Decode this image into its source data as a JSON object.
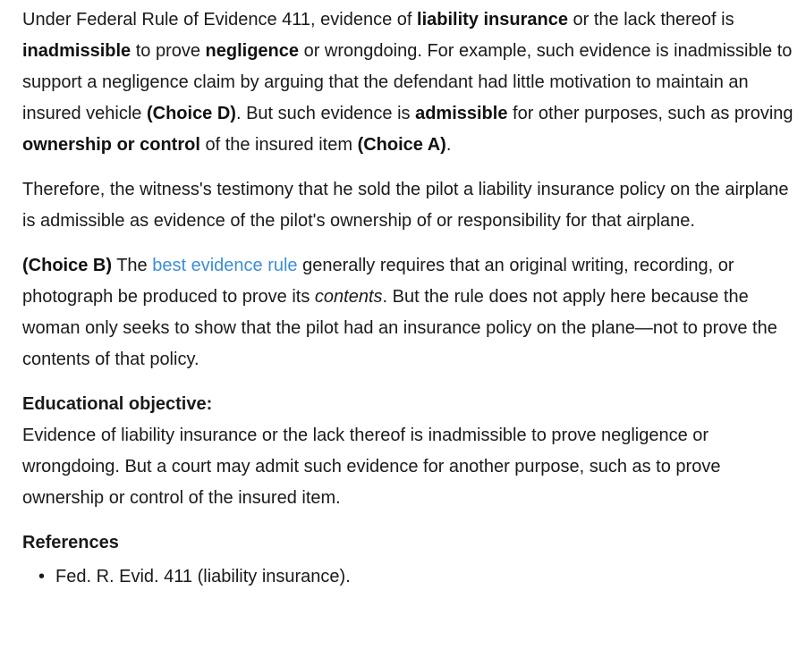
{
  "explanation": {
    "p1": {
      "t1": "Under Federal Rule of Evidence 411, evidence of ",
      "b1": "liability insurance",
      "t2": " or the lack thereof is ",
      "b2": "inadmissible",
      "t3": " to prove ",
      "b3": "negligence",
      "t4": " or wrongdoing.  For example, such evidence is inadmissible to support a negligence claim by arguing that the defendant had little motivation to maintain an insured vehicle ",
      "b4": "(Choice D)",
      "t5": ".  But such evidence is ",
      "b5": "admissible",
      "t6": " for other purposes, such as proving ",
      "b6": "ownership or control",
      "t7": " of the insured item ",
      "b7": "(Choice A)",
      "t8": "."
    },
    "p2": "Therefore, the witness's testimony that he sold the pilot a liability insurance policy on the airplane is admissible as evidence of the pilot's ownership of or responsibility for that airplane.",
    "p3": {
      "b1": "(Choice B)",
      "t1": "  The ",
      "link": "best evidence rule",
      "t2": " generally requires that an original writing, recording, or photograph be produced to prove its ",
      "i1": "contents",
      "t3": ".  But the rule does not apply here because the woman only seeks to show that the pilot had an insurance policy on the plane—not to prove the contents of that policy."
    }
  },
  "objective": {
    "heading": "Educational objective:",
    "text": "Evidence of liability insurance or the lack thereof is inadmissible to prove negligence or wrongdoing.  But a court may admit such evidence for another purpose, such as to prove ownership or control of the insured item."
  },
  "references": {
    "heading": "References",
    "bullet": "•",
    "items": [
      "Fed. R. Evid. 411 (liability insurance)."
    ]
  }
}
